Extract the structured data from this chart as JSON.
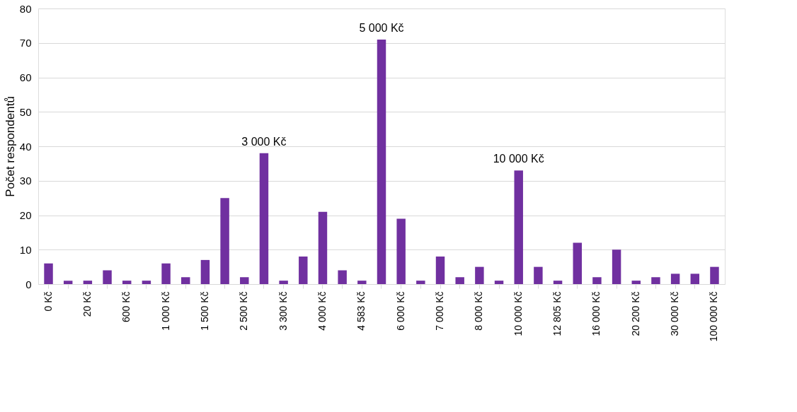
{
  "chart_data": {
    "type": "bar",
    "ylabel": "Počet respondentů",
    "categories": [
      "0 Kč",
      null,
      "20 Kč",
      null,
      "600 Kč",
      null,
      "1 000 Kč",
      null,
      "1 500 Kč",
      null,
      "2 500 Kč",
      null,
      "3 300 Kč",
      null,
      "4 000 Kč",
      null,
      "4 583 Kč",
      null,
      "6 000 Kč",
      null,
      "7 000 Kč",
      null,
      "8 000 Kč",
      null,
      "10 000 Kč",
      null,
      "12 805 Kč",
      null,
      "16 000 Kč",
      null,
      "20 200 Kč",
      null,
      "30 000 Kč",
      null,
      "100 000 Kč"
    ],
    "values": [
      6,
      1,
      1,
      4,
      1,
      1,
      6,
      2,
      7,
      25,
      2,
      38,
      1,
      8,
      21,
      4,
      1,
      71,
      19,
      1,
      8,
      2,
      5,
      1,
      33,
      5,
      1,
      12,
      2,
      10,
      1,
      2,
      3,
      3,
      5
    ],
    "color": "#7030a0",
    "ylim": [
      0,
      80
    ],
    "yticks": [
      0,
      10,
      20,
      30,
      40,
      50,
      60,
      70,
      80
    ],
    "grid": "y",
    "annotations": [
      {
        "text": "3 000 Kč",
        "y": 38
      },
      {
        "text": "5 000 Kč",
        "y": 71
      },
      {
        "text": "10 000 Kč",
        "y": 33
      }
    ]
  }
}
